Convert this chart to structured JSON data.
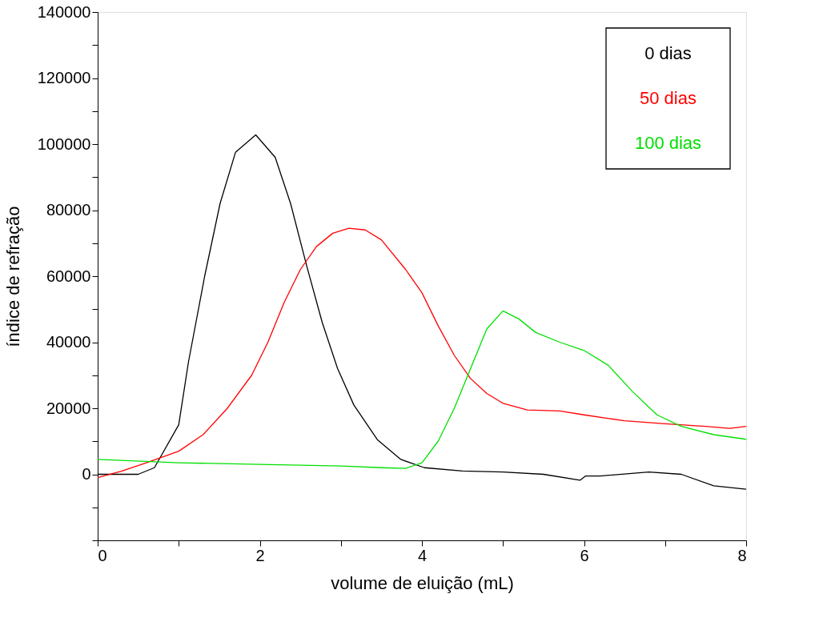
{
  "chart_data": {
    "type": "line",
    "xlabel": "volume de eluição (mL)",
    "ylabel": "índice de refração",
    "xlim": [
      0,
      8
    ],
    "ylim": [
      -20000,
      140000
    ],
    "xticks": [
      0,
      {
        "value": 1,
        "label": null
      },
      2,
      {
        "value": 3,
        "label": null
      },
      4,
      {
        "value": 5,
        "label": null
      },
      6,
      {
        "value": 7,
        "label": null
      },
      8
    ],
    "yticks": [
      {
        "value": -20000,
        "label": null
      },
      {
        "value": -10000,
        "label": null
      },
      0,
      {
        "value": 10000,
        "label": null
      },
      20000,
      {
        "value": 30000,
        "label": null
      },
      40000,
      {
        "value": 50000,
        "label": null
      },
      60000,
      {
        "value": 70000,
        "label": null
      },
      80000,
      {
        "value": 90000,
        "label": null
      },
      100000,
      {
        "value": 110000,
        "label": null
      },
      120000,
      {
        "value": 130000,
        "label": null
      },
      140000
    ],
    "grid": false,
    "legend": "top right",
    "marker": "none",
    "line_style": "solid",
    "series": [
      {
        "name": "0 dias",
        "color": "#000000",
        "x": [
          0,
          0.5,
          0.7,
          1.0,
          1.12,
          1.32,
          1.51,
          1.7,
          1.95,
          2.19,
          2.38,
          2.58,
          2.77,
          2.96,
          3.16,
          3.45,
          3.74,
          4.03,
          4.5,
          5.0,
          5.5,
          5.95,
          6.02,
          6.2,
          6.8,
          7.2,
          7.6,
          8.0
        ],
        "values": [
          0,
          0,
          2000,
          15000,
          34000,
          60000,
          82000,
          97500,
          102800,
          96000,
          82000,
          63000,
          46000,
          32000,
          21000,
          10500,
          4500,
          2000,
          1000,
          700,
          0,
          -1800,
          -500,
          -500,
          700,
          0,
          -3500,
          -4500
        ]
      },
      {
        "name": "50 dias",
        "color": "#ff0000",
        "x": [
          0,
          0.3,
          0.6,
          1.0,
          1.3,
          1.6,
          1.9,
          2.1,
          2.3,
          2.5,
          2.7,
          2.9,
          3.1,
          3.3,
          3.5,
          3.8,
          4.0,
          4.2,
          4.4,
          4.6,
          4.8,
          5.0,
          5.3,
          5.7,
          6.0,
          6.5,
          7.0,
          7.5,
          7.8,
          8.0
        ],
        "values": [
          -1000,
          1000,
          3500,
          7000,
          12000,
          20000,
          30000,
          40000,
          52000,
          62000,
          69000,
          73000,
          74500,
          74000,
          71000,
          62000,
          55000,
          45000,
          36000,
          29000,
          24500,
          21500,
          19500,
          19200,
          18000,
          16200,
          15300,
          14500,
          13900,
          14500
        ]
      },
      {
        "name": "100 dias",
        "color": "#00e000",
        "x": [
          0,
          1,
          2,
          3,
          3.5,
          3.8,
          4.0,
          4.2,
          4.4,
          4.6,
          4.8,
          5.0,
          5.2,
          5.4,
          5.7,
          6.0,
          6.3,
          6.6,
          6.9,
          7.2,
          7.6,
          8.0
        ],
        "values": [
          4500,
          3500,
          3000,
          2500,
          2000,
          1800,
          3500,
          10000,
          20000,
          32000,
          44000,
          49500,
          47000,
          43000,
          40000,
          37500,
          33000,
          25000,
          18000,
          14500,
          12000,
          10600
        ]
      }
    ]
  }
}
